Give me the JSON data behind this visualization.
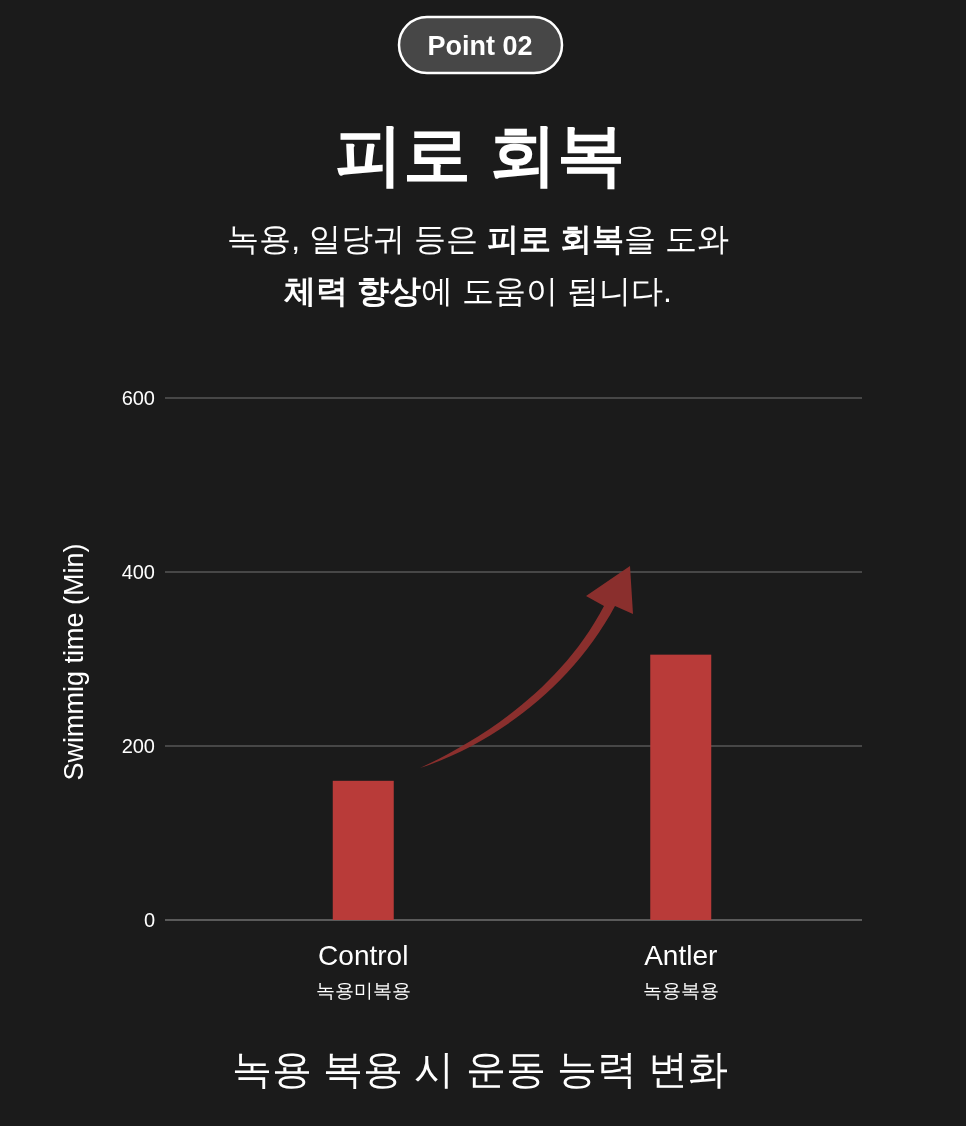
{
  "chart_data": {
    "type": "bar",
    "title": "피로 회복",
    "subtitle": "녹용, 일당귀 등은 **피로 회복**을 도와\n**체력 향상**에 도움이 됩니다.",
    "ylabel": "Swimmig time (Min)",
    "categories": [
      "Control\n녹용미복용",
      "Antler\n녹용복용"
    ],
    "values": [
      160,
      305
    ],
    "color": "#b93b39",
    "ylim": [
      0,
      600
    ],
    "yticks": [
      0,
      200,
      400,
      600
    ],
    "grid": "y",
    "annotations": [
      "Point 02",
      "녹용 복용 시 운동 능력 변화"
    ]
  }
}
